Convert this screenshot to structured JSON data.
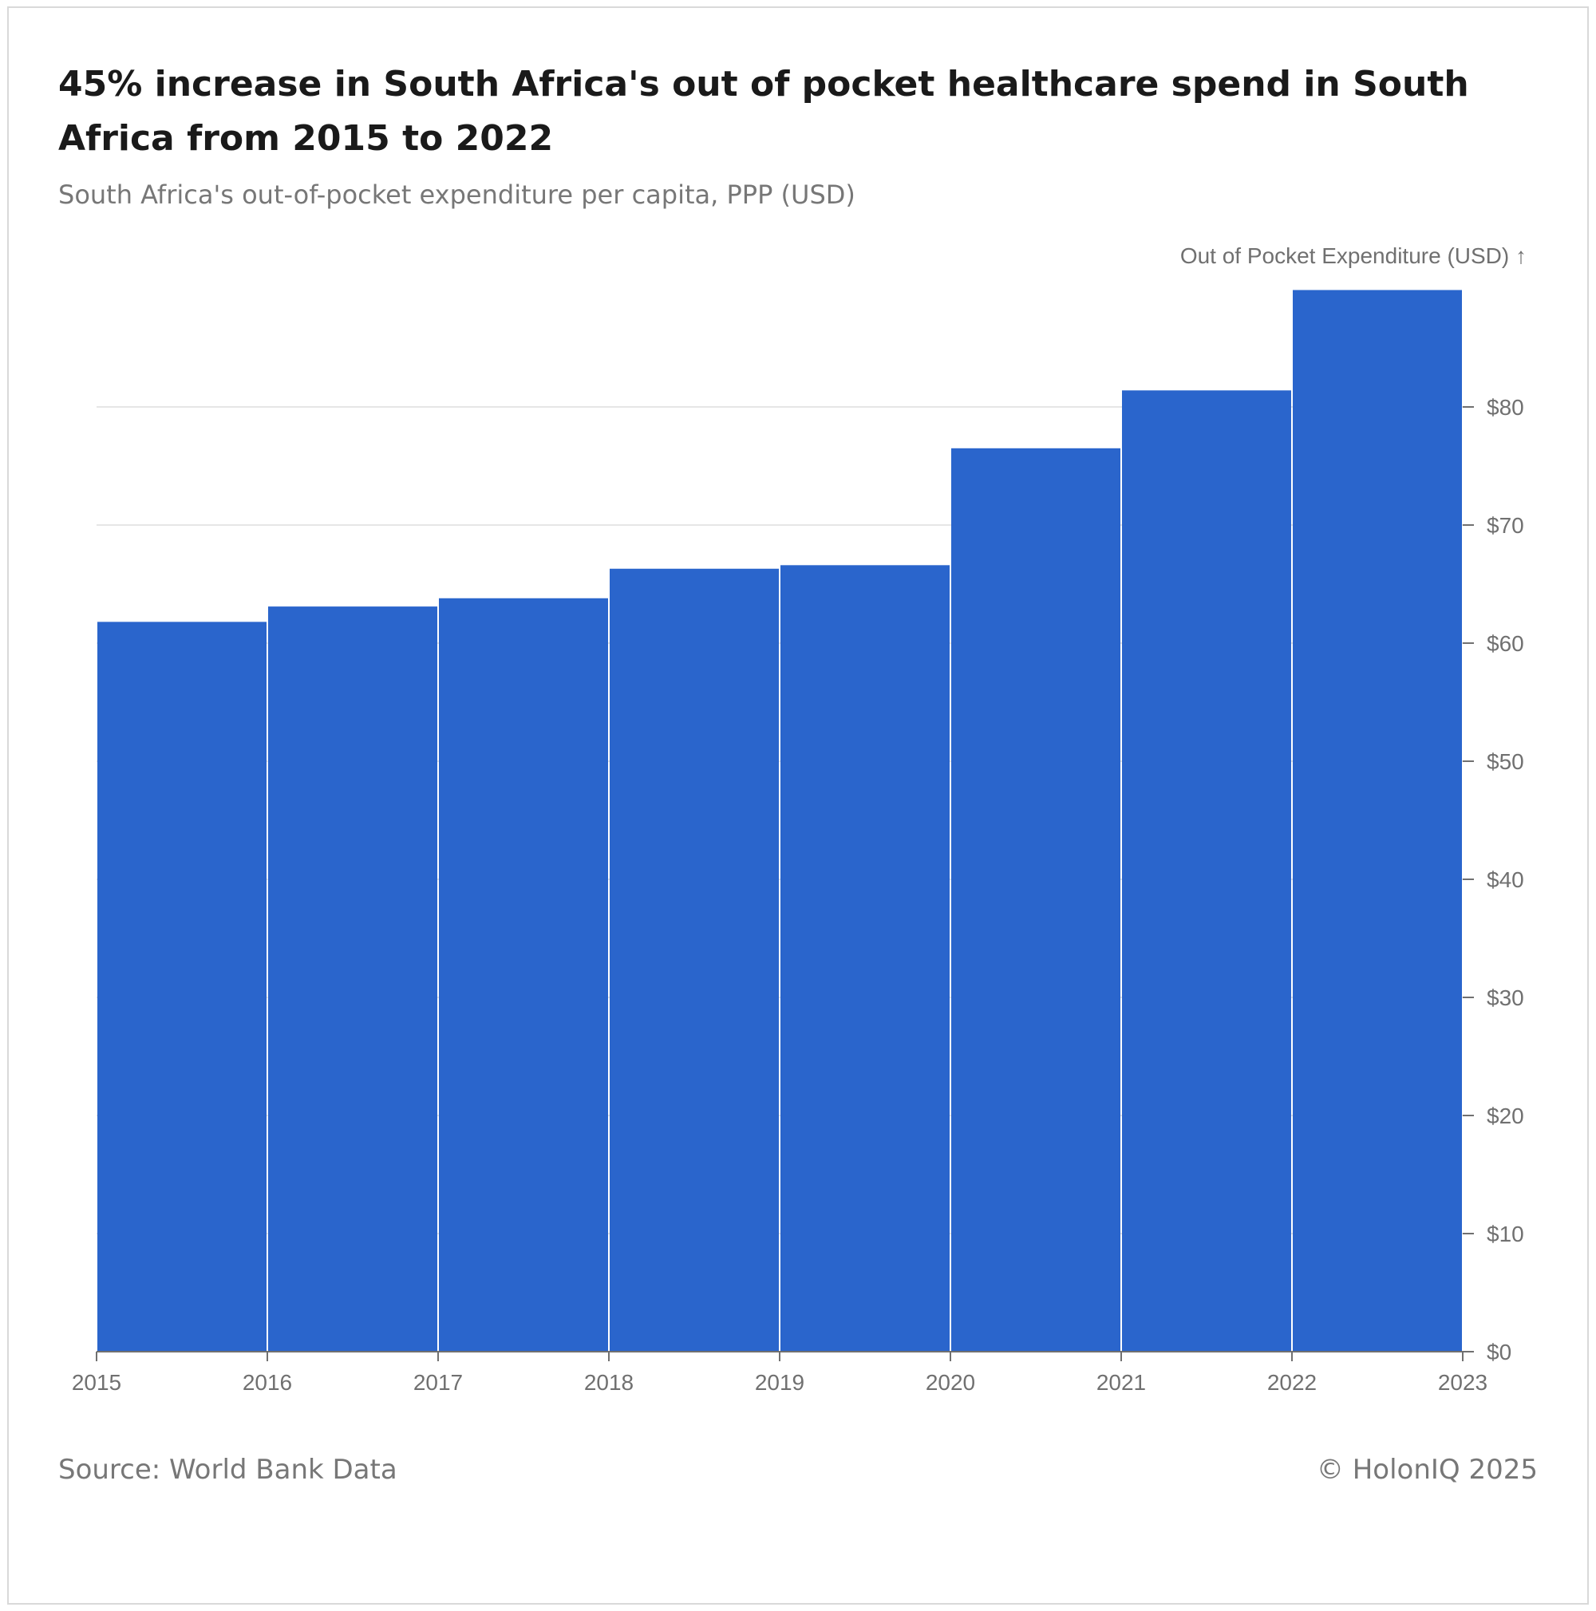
{
  "header": {
    "title": "45% increase in South Africa's out of pocket healthcare spend in South Africa from 2015 to 2022",
    "subtitle": "South Africa's out-of-pocket expenditure per capita, PPP (USD)"
  },
  "footer": {
    "source": "Source: World Bank Data",
    "copyright": "© HolonIQ 2025"
  },
  "colors": {
    "bar": "#2a65cc",
    "grid": "#e6e6e6",
    "axis": "#707070",
    "bar_gap": "#ffffff"
  },
  "chart_data": {
    "type": "bar",
    "title": "45% increase in South Africa's out of pocket healthcare spend in South Africa from 2015 to 2022",
    "subtitle": "South Africa's out-of-pocket expenditure per capita, PPP (USD)",
    "xlabel": "",
    "ylabel": "Out of Pocket Expenditure (USD) ↑",
    "y_axis_position": "right",
    "bins": [
      {
        "start": 2015,
        "end": 2016,
        "value": 61.8
      },
      {
        "start": 2016,
        "end": 2017,
        "value": 63.1
      },
      {
        "start": 2017,
        "end": 2018,
        "value": 63.8
      },
      {
        "start": 2018,
        "end": 2019,
        "value": 66.3
      },
      {
        "start": 2019,
        "end": 2020,
        "value": 66.6
      },
      {
        "start": 2020,
        "end": 2021,
        "value": 76.5
      },
      {
        "start": 2021,
        "end": 2022,
        "value": 81.4
      },
      {
        "start": 2022,
        "end": 2023,
        "value": 89.9
      }
    ],
    "x_ticks": [
      "2015",
      "2016",
      "2017",
      "2018",
      "2019",
      "2020",
      "2021",
      "2022",
      "2023"
    ],
    "x_range": [
      2015,
      2023
    ],
    "y_ticks": [
      0,
      10,
      20,
      30,
      40,
      50,
      60,
      70,
      80
    ],
    "y_tick_labels": [
      "$0",
      "$10",
      "$20",
      "$30",
      "$40",
      "$50",
      "$60",
      "$70",
      "$80"
    ],
    "ylim": [
      0,
      90
    ],
    "grid": true
  }
}
